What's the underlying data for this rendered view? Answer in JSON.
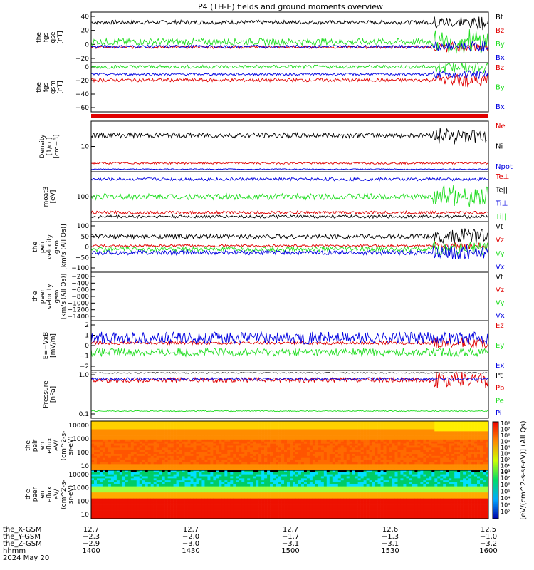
{
  "title": "P4 (TH-E) fields and ground moments overview",
  "colors": {
    "black": "#000000",
    "red": "#e00000",
    "green": "#22dd22",
    "blue": "#0000e0"
  },
  "chart_data": [
    {
      "type": "line",
      "panel": "fgs_gse",
      "ylabel": [
        "the",
        "fgs",
        "gse",
        "[nT]"
      ],
      "yticks": [
        "40",
        "20",
        "0",
        "−20"
      ],
      "ylim": [
        -25,
        50
      ],
      "series": [
        {
          "name": "Bt",
          "color": "black",
          "base": 35,
          "noise": 3,
          "end_wild": true
        },
        {
          "name": "Bz",
          "color": "red",
          "base": -2,
          "noise": 2,
          "end_wild": true
        },
        {
          "name": "By",
          "color": "green",
          "base": 6,
          "noise": 5,
          "end_wild": true
        },
        {
          "name": "Bx",
          "color": "blue",
          "base": -1,
          "noise": 2,
          "end_wild": true
        }
      ]
    },
    {
      "type": "line",
      "panel": "fgs_gsm",
      "ylabel": [
        "the",
        "fgs",
        "gsm",
        "[nT]"
      ],
      "yticks": [
        "0",
        "−20",
        "−40",
        "−60"
      ],
      "ylim": [
        -75,
        10
      ],
      "series": [
        {
          "name": "Bz",
          "color": "red",
          "base": -20,
          "noise": 3,
          "end_wild": true
        },
        {
          "name": "By",
          "color": "green",
          "base": 3,
          "noise": 3,
          "end_wild": true
        },
        {
          "name": "Bx",
          "color": "blue",
          "base": -10,
          "noise": 2,
          "end_wild": true
        }
      ]
    },
    {
      "type": "line",
      "panel": "density",
      "ylabel": [
        "Density",
        "[1/cc]",
        "[cm−3]"
      ],
      "yticks": [
        "10"
      ],
      "ylim": [
        0,
        1
      ],
      "series": [
        {
          "name": "Ne",
          "color": "red",
          "base": 0.17,
          "noise": 0.02
        },
        {
          "name": "Ni",
          "color": "black",
          "base": 0.72,
          "noise": 0.05,
          "end_wild": true
        },
        {
          "name": "Npot",
          "color": "blue",
          "base": 0.05,
          "noise": 0.01
        }
      ]
    },
    {
      "type": "line",
      "panel": "temperature",
      "ylabel": [
        "moat3",
        "[eV]"
      ],
      "yticks": [
        "100"
      ],
      "ylim": [
        0,
        1
      ],
      "series": [
        {
          "name": "Te⊥",
          "color": "red",
          "base": 0.18,
          "noise": 0.03
        },
        {
          "name": "Te||",
          "color": "black",
          "base": 0.1,
          "noise": 0.03
        },
        {
          "name": "Ti⊥",
          "color": "blue",
          "base": 0.85,
          "noise": 0.03
        },
        {
          "name": "Ti||",
          "color": "green",
          "base": 0.5,
          "noise": 0.06,
          "end_wild": true
        }
      ]
    },
    {
      "type": "line",
      "panel": "peir_velocity",
      "ylabel": [
        "the",
        "peir",
        "velocity",
        "gsm",
        "[km/s (All Qs)]"
      ],
      "yticks": [
        "100",
        "50",
        "0",
        "−50",
        "−100"
      ],
      "ylim": [
        -110,
        110
      ],
      "series": [
        {
          "name": "Vt",
          "color": "black",
          "base": 45,
          "noise": 10,
          "end_wild": true
        },
        {
          "name": "Vz",
          "color": "red",
          "base": 5,
          "noise": 5,
          "end_wild": true
        },
        {
          "name": "Vy",
          "color": "green",
          "base": -10,
          "noise": 10,
          "end_wild": true
        },
        {
          "name": "Vx",
          "color": "blue",
          "base": -25,
          "noise": 10,
          "end_wild": true
        }
      ]
    },
    {
      "type": "line",
      "panel": "peer_velocity",
      "ylabel": [
        "the",
        "peer",
        "velocity",
        "gsm",
        "[km/s (All Qs)]"
      ],
      "yticks": [
        "−200",
        "−400",
        "−600",
        "−800",
        "−1000",
        "−1200",
        "−1400"
      ],
      "ylim": [
        -1500,
        -150
      ],
      "series": [
        {
          "name": "Vt",
          "color": "black"
        },
        {
          "name": "Vz",
          "color": "red"
        },
        {
          "name": "Vy",
          "color": "green"
        },
        {
          "name": "Vx",
          "color": "blue"
        }
      ]
    },
    {
      "type": "line",
      "panel": "efield",
      "ylabel": [
        "E=−VxB",
        "[mV/m]"
      ],
      "yticks": [
        "2",
        "1",
        "0",
        "−1",
        "−2"
      ],
      "ylim": [
        -2.6,
        2.3
      ],
      "series": [
        {
          "name": "Ez",
          "color": "red",
          "base": 0.1,
          "noise": 0.15,
          "end_wild": true
        },
        {
          "name": "Ey",
          "color": "green",
          "base": -0.8,
          "noise": 0.4
        },
        {
          "name": "Ex",
          "color": "blue",
          "base": 0.6,
          "noise": 0.6
        }
      ]
    },
    {
      "type": "line",
      "panel": "pressure",
      "ylabel": [
        "Pressure",
        "[nPa]"
      ],
      "yticks": [
        "1.0",
        "0.1"
      ],
      "ylim": [
        0,
        1
      ],
      "series": [
        {
          "name": "Pt",
          "color": "black",
          "base": 0.95,
          "noise": 0.01
        },
        {
          "name": "Pb",
          "color": "red",
          "base": 0.8,
          "noise": 0.05,
          "end_wild": true
        },
        {
          "name": "Pe",
          "color": "green",
          "base": 0.15,
          "noise": 0.01
        },
        {
          "name": "Pi",
          "color": "blue",
          "base": 0.82,
          "noise": 0.03
        }
      ]
    },
    {
      "type": "heatmap",
      "panel": "peir_eflux",
      "ylabel": [
        "the",
        "peir",
        "en",
        "eflux",
        "eV/",
        "(cm^2-s-",
        "sr-eV)"
      ],
      "yticks": [
        "10000",
        "1000",
        "100",
        "10"
      ]
    },
    {
      "type": "heatmap",
      "panel": "peer_eflux",
      "ylabel": [
        "the",
        "peer",
        "en",
        "eflux",
        "eV/",
        "(cm^2-s-",
        "sr-eV)"
      ],
      "yticks": [
        "10000",
        "1000",
        "100",
        "10"
      ]
    }
  ],
  "colorbar": {
    "label": "[eV/(cm^2-s-sr-eV)] (All Qs)",
    "ticks_top": [
      "10⁸",
      "10⁷",
      "10⁶",
      "10⁵",
      "10⁴",
      "10³",
      "10²",
      "10¹",
      "10⁰"
    ],
    "ticks_bottom": [
      "10⁸",
      "10⁷",
      "10⁶",
      "10⁵",
      "10⁴",
      "10³",
      "10²"
    ]
  },
  "xaxis": {
    "rows": [
      {
        "label": "the_X-GSM",
        "values": [
          "12.7",
          "12.7",
          "12.7",
          "12.6",
          "12.5"
        ]
      },
      {
        "label": "the_Y-GSM",
        "values": [
          "−2.3",
          "−2.0",
          "−1.7",
          "−1.3",
          "−1.0"
        ]
      },
      {
        "label": "the_Z-GSM",
        "values": [
          "−2.9",
          "−3.0",
          "−3.1",
          "−3.1",
          "−3.2"
        ]
      },
      {
        "label": "hhmm",
        "values": [
          "1400",
          "1430",
          "1500",
          "1530",
          "1600"
        ]
      }
    ],
    "date": "2024 May 20"
  }
}
